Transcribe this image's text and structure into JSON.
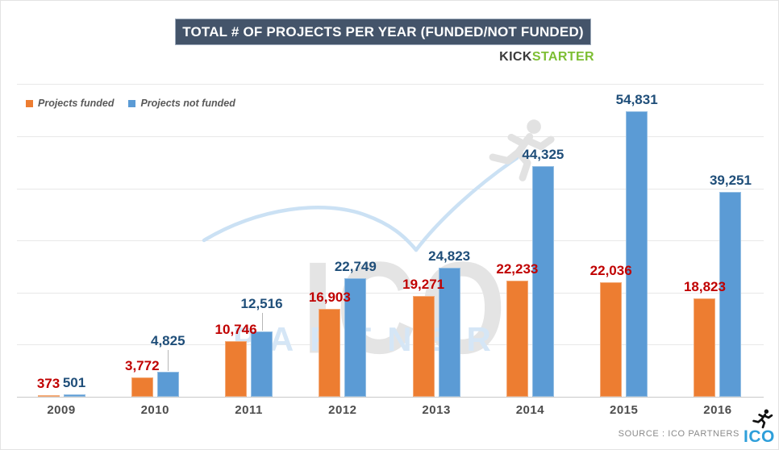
{
  "header": {
    "title": "TOTAL # OF PROJECTS PER YEAR (FUNDED/NOT FUNDED)",
    "banner_bg": "#44546A",
    "brand_kick": "KICK",
    "brand_starter": "STARTER",
    "brand_kick_color": "#3A3A3A",
    "brand_starter_color": "#7DBE33"
  },
  "legend": {
    "items": [
      {
        "label": "Projects funded",
        "color": "#ED7D31"
      },
      {
        "label": "Projects not funded",
        "color": "#5B9BD5"
      }
    ]
  },
  "chart_data": {
    "type": "bar",
    "title": "TOTAL # OF PROJECTS PER YEAR (FUNDED/NOT FUNDED)",
    "categories": [
      "2009",
      "2010",
      "2011",
      "2012",
      "2013",
      "2014",
      "2015",
      "2016"
    ],
    "series": [
      {
        "name": "Projects funded",
        "color": "#ED7D31",
        "label_color": "#C00000",
        "values": [
          373,
          3772,
          10746,
          16903,
          19271,
          22233,
          22036,
          18823
        ]
      },
      {
        "name": "Projects not funded",
        "color": "#5B9BD5",
        "label_color": "#1F4E79",
        "values": [
          501,
          4825,
          12516,
          22749,
          24823,
          44325,
          54831,
          39251
        ]
      }
    ],
    "xlabel": "",
    "ylabel": "",
    "ylim": [
      0,
      60000
    ],
    "grid": true,
    "gridline_step": 10000,
    "legend_position": "top-left",
    "data_labels": true,
    "label_lifts_not_funded": [
      0,
      24,
      20,
      0,
      0,
      0,
      0,
      0
    ]
  },
  "watermark": {
    "ico": "ICO",
    "partners": "PARTNERS",
    "runner_icon": "runner-icon"
  },
  "footer": {
    "source": "SOURCE : ICO PARTNERS",
    "logo_text": "ICO",
    "logo_color": "#2E9FDA",
    "runner_icon": "runner-icon"
  }
}
